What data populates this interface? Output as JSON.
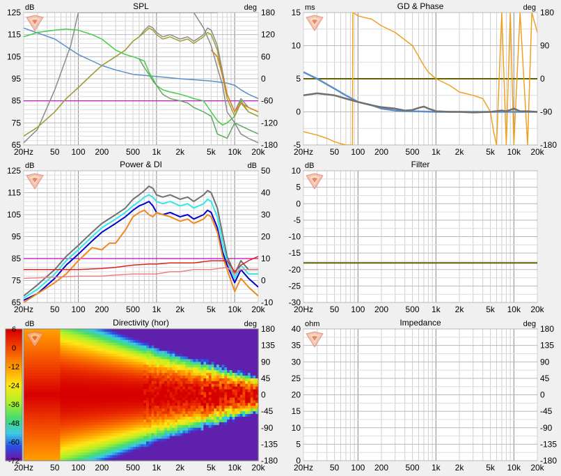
{
  "chart_data": [
    {
      "id": "spl",
      "type": "line",
      "title": "SPL",
      "left_unit": "dB",
      "right_unit": "deg",
      "x_ticks": [
        "20Hz",
        "50",
        "100",
        "200",
        "500",
        "1k",
        "2k",
        "5k",
        "10k",
        "20k"
      ],
      "left_ticks": [
        "125",
        "115",
        "105",
        "95",
        "85",
        "75",
        "65"
      ],
      "right_ticks": [
        "180",
        "120",
        "60",
        "0",
        "-60",
        "-120",
        "-180"
      ],
      "ylim": [
        65,
        125
      ],
      "xlim": [
        20,
        20000
      ],
      "x_scale": "log",
      "reference_line": {
        "y": 85,
        "color": "#c000c0"
      },
      "series": [
        {
          "color": "#8a8a8a",
          "x": [
            20,
            30,
            50,
            80,
            100,
            150,
            200,
            300,
            500,
            800,
            1000,
            1500,
            2000,
            3000,
            4000,
            5000,
            6000
          ],
          "y": [
            66,
            72,
            90,
            110,
            125,
            125,
            125,
            125,
            125,
            125,
            125,
            125,
            125,
            125,
            125,
            125,
            125
          ]
        },
        {
          "color": "#8a8a8a",
          "x": [
            2000,
            3000,
            4000,
            5000,
            6000,
            7000,
            8000,
            10000,
            12000,
            15000,
            20000
          ],
          "y": [
            128,
            125,
            118,
            110,
            100,
            92,
            80,
            75,
            70,
            68,
            66
          ]
        },
        {
          "color": "#5b8fc7",
          "x": [
            20,
            50,
            100,
            200,
            300,
            500,
            1000,
            2000,
            5000,
            8000,
            10000,
            12000,
            15000,
            20000
          ],
          "y": [
            118,
            113,
            106,
            101,
            99,
            97,
            96,
            95,
            94,
            93,
            92,
            90,
            88,
            86
          ]
        },
        {
          "color": "#44cc44",
          "x": [
            20,
            30,
            50,
            70,
            100,
            150,
            200,
            300,
            400,
            500,
            600,
            700,
            800,
            900,
            1000,
            1200,
            1500,
            2000,
            2500,
            3000,
            4000,
            5000,
            6000,
            7000,
            8000,
            10000,
            12000,
            15000,
            20000
          ],
          "y": [
            114,
            116,
            117,
            117.5,
            117,
            115,
            113,
            108,
            106,
            105,
            104,
            103,
            98,
            95,
            92,
            90,
            89,
            88,
            87,
            86,
            85,
            80,
            76,
            74,
            75,
            78,
            85,
            80,
            78
          ]
        },
        {
          "color": "#60a860",
          "x": [
            600,
            700,
            800,
            900,
            1000,
            1200,
            1500,
            2000,
            2500,
            3000,
            4000,
            5000,
            6000,
            8000,
            10000,
            15000,
            20000
          ],
          "y": [
            104,
            100,
            97,
            94,
            92,
            88,
            86,
            85,
            84,
            82,
            80,
            78,
            70,
            68,
            75,
            72,
            70
          ]
        },
        {
          "color": "#8a8a8a",
          "x": [
            20,
            30,
            50,
            70,
            100,
            150,
            200,
            300,
            400,
            500,
            600,
            700,
            800,
            900,
            1000,
            1200,
            1500,
            2000,
            2500,
            3000,
            4000,
            4500,
            5000,
            6000,
            7000,
            8000,
            10000,
            12000,
            15000,
            20000
          ],
          "y": [
            69,
            73,
            80,
            86,
            91,
            97,
            101,
            105,
            108,
            112,
            114,
            117,
            119,
            118,
            116,
            114,
            115,
            113,
            114,
            112,
            115,
            118,
            117,
            110,
            98,
            88,
            80,
            86,
            82,
            80
          ]
        },
        {
          "color": "#a0a030",
          "x": [
            20,
            30,
            50,
            70,
            100,
            150,
            200,
            300,
            400,
            500,
            600,
            700,
            800,
            900,
            1000,
            1200,
            1500,
            2000,
            2500,
            3000,
            4000,
            4500,
            5000,
            6000,
            7000,
            8000,
            10000,
            12000,
            15000,
            20000
          ],
          "y": [
            69,
            73,
            80,
            86,
            91,
            97,
            101,
            105,
            108,
            112,
            114,
            116,
            118,
            117,
            115,
            113,
            114,
            112,
            113,
            111,
            114,
            116,
            115,
            108,
            96,
            86,
            78,
            84,
            80,
            78
          ]
        },
        {
          "color": "#e08020",
          "x": [
            5000,
            6000,
            7000,
            8000,
            10000,
            12000,
            15000,
            20000
          ],
          "y": [
            108,
            105,
            96,
            88,
            80,
            84,
            82,
            80
          ]
        }
      ]
    },
    {
      "id": "gd",
      "type": "line",
      "title": "GD & Phase",
      "left_unit": "ms",
      "right_unit": "deg",
      "x_ticks": [
        "20Hz",
        "50",
        "100",
        "200",
        "500",
        "1k",
        "2k",
        "5k",
        "10k",
        "20k"
      ],
      "left_ticks": [
        "15",
        "10",
        "5",
        "0",
        "-5"
      ],
      "right_ticks": [
        "180",
        "90",
        "0",
        "-90",
        "-180"
      ],
      "ylim": [
        -5,
        15
      ],
      "xlim": [
        20,
        20000
      ],
      "x_scale": "log",
      "reference_line": {
        "y": 5,
        "color": "#606000"
      },
      "series": [
        {
          "color": "#f0a020",
          "x": [
            20,
            30,
            40,
            50,
            60,
            70,
            80,
            85,
            86,
            87,
            100,
            150,
            200,
            300,
            500,
            700,
            800,
            1000,
            1500,
            2000,
            3000,
            4000,
            5000,
            5500,
            6000,
            7000,
            8000,
            9000,
            10000,
            12000,
            15000,
            17000,
            20000
          ],
          "y": [
            -3,
            -3.5,
            -4,
            -4.5,
            -4.8,
            -5,
            -5,
            -5,
            15,
            15,
            14.5,
            14,
            13,
            12,
            10,
            7,
            6,
            5,
            4,
            3,
            2.5,
            2,
            0,
            -3,
            -5,
            15,
            -5,
            15,
            -5,
            15,
            -5,
            15,
            12
          ]
        },
        {
          "color": "#5b8fc7",
          "x": [
            20,
            30,
            50,
            70,
            100,
            150,
            200,
            300,
            500,
            1000,
            2000,
            5000,
            10000,
            20000
          ],
          "y": [
            6,
            5,
            3.5,
            2.5,
            1.5,
            1,
            0.5,
            0.2,
            0.1,
            0,
            0,
            0,
            0,
            0
          ]
        },
        {
          "color": "#707070",
          "x": [
            20,
            30,
            50,
            70,
            100,
            150,
            200,
            300,
            400,
            500,
            600,
            700,
            800,
            900,
            1000,
            1500,
            2000,
            3000,
            5000,
            7000,
            8000,
            9000,
            10000,
            12000,
            15000,
            20000
          ],
          "y": [
            2.5,
            2.8,
            2.5,
            2,
            1.5,
            1,
            0.7,
            0.5,
            0.2,
            0.3,
            0.6,
            0.8,
            0.5,
            0.3,
            0.1,
            0,
            0,
            -0.1,
            0,
            0.2,
            0.1,
            0.3,
            0.5,
            0.1,
            0.1,
            0
          ]
        }
      ]
    },
    {
      "id": "power",
      "type": "line",
      "title": "Power & DI",
      "left_unit": "dB",
      "right_unit": "dB",
      "x_ticks": [
        "20Hz",
        "50",
        "100",
        "200",
        "500",
        "1k",
        "2k",
        "5k",
        "10k",
        "20k"
      ],
      "left_ticks": [
        "125",
        "115",
        "105",
        "95",
        "85",
        "75",
        "65"
      ],
      "right_ticks": [
        "50",
        "40",
        "30",
        "20",
        "10",
        "0",
        "-10"
      ],
      "ylim": [
        65,
        125
      ],
      "xlim": [
        20,
        20000
      ],
      "x_scale": "log",
      "reference_line": {
        "y": 85,
        "color": "#c000c0"
      },
      "series": [
        {
          "color": "#707070",
          "x": [
            20,
            30,
            50,
            70,
            100,
            150,
            200,
            300,
            400,
            500,
            600,
            700,
            800,
            900,
            1000,
            1200,
            1500,
            2000,
            2500,
            3000,
            4000,
            4500,
            5000,
            6000,
            7000,
            8000,
            10000,
            12000,
            15000,
            20000
          ],
          "y": [
            68,
            73,
            80,
            86,
            91,
            97,
            101,
            105,
            108,
            112,
            114,
            116,
            118,
            117,
            114,
            113,
            114,
            112,
            113,
            111,
            114,
            116,
            115,
            108,
            96,
            86,
            78,
            84,
            80,
            80
          ]
        },
        {
          "color": "#30e8e8",
          "x": [
            20,
            30,
            50,
            70,
            100,
            150,
            200,
            300,
            400,
            500,
            600,
            700,
            800,
            900,
            1000,
            1200,
            1500,
            2000,
            2500,
            3000,
            4000,
            4500,
            5000,
            6000,
            7000,
            8000,
            10000,
            12000,
            15000,
            20000
          ],
          "y": [
            67,
            71,
            78,
            84,
            89,
            95,
            99,
            103,
            106,
            109,
            111,
            113,
            114,
            113,
            111,
            110,
            111,
            109,
            110,
            108,
            110,
            112,
            111,
            104,
            92,
            84,
            76,
            82,
            78,
            78
          ]
        },
        {
          "color": "#0000d0",
          "x": [
            20,
            30,
            50,
            70,
            100,
            150,
            200,
            300,
            400,
            500,
            600,
            700,
            800,
            900,
            1000,
            1200,
            1500,
            2000,
            2500,
            3000,
            4000,
            4500,
            5000,
            6000,
            7000,
            8000,
            10000,
            12000,
            15000,
            20000
          ],
          "y": [
            66,
            69,
            76,
            82,
            87,
            93,
            97,
            101,
            104,
            107,
            109,
            110,
            111,
            109,
            106,
            105,
            106,
            104,
            105,
            103,
            105,
            107,
            106,
            99,
            88,
            82,
            74,
            80,
            76,
            72
          ]
        },
        {
          "color": "#f08820",
          "x": [
            20,
            30,
            50,
            70,
            100,
            150,
            200,
            250,
            300,
            400,
            500,
            600,
            700,
            800,
            900,
            1000,
            1200,
            1500,
            2000,
            2500,
            3000,
            4000,
            4500,
            5000,
            6000,
            7000,
            8000,
            10000,
            12000,
            15000,
            20000
          ],
          "y": [
            65,
            69,
            74,
            78,
            84,
            90,
            89,
            92,
            92,
            98,
            104,
            106,
            107,
            105,
            104,
            106,
            105,
            104,
            102,
            103,
            101,
            103,
            105,
            104,
            97,
            86,
            80,
            70,
            76,
            72,
            68
          ]
        },
        {
          "color": "#e02020",
          "x": [
            20,
            50,
            100,
            200,
            300,
            500,
            800,
            1000,
            1500,
            2000,
            3000,
            5000,
            8000,
            10000,
            12000,
            15000,
            20000
          ],
          "y": [
            80,
            80,
            80,
            80.5,
            81,
            82,
            82.5,
            82.5,
            83,
            83,
            83,
            84,
            84,
            79,
            82,
            84,
            86
          ]
        },
        {
          "color": "#f08080",
          "x": [
            20,
            50,
            100,
            200,
            300,
            500,
            800,
            1000,
            1500,
            2000,
            3000,
            5000,
            8000,
            10000,
            12000,
            15000,
            20000
          ],
          "y": [
            76,
            76.5,
            77,
            77,
            77.5,
            78,
            78,
            78,
            79,
            79,
            80,
            80,
            81,
            78,
            80,
            80,
            80
          ]
        }
      ]
    },
    {
      "id": "filter",
      "type": "line",
      "title": "Filter",
      "left_unit": "dB",
      "right_unit": "",
      "x_ticks": [
        "20Hz",
        "50",
        "100",
        "200",
        "500",
        "1k",
        "2k",
        "5k",
        "10k",
        "20k"
      ],
      "left_ticks": [
        "10",
        "5",
        "0",
        "-5",
        "-10",
        "-15",
        "-20",
        "-25",
        "-30"
      ],
      "right_ticks": [],
      "ylim": [
        -30,
        10
      ],
      "xlim": [
        20,
        20000
      ],
      "x_scale": "log",
      "reference_line": {
        "y": -18,
        "color": "#606000"
      },
      "series": []
    },
    {
      "id": "directivity",
      "type": "heatmap",
      "title": "Directivity (hor)",
      "left_unit": "dB",
      "right_unit": "deg",
      "x_ticks": [
        "20Hz",
        "50",
        "100",
        "200",
        "500",
        "1k",
        "2k",
        "5k",
        "10k",
        "20k"
      ],
      "left_ticks": [
        "6",
        "0",
        "-12",
        "-24",
        "-36",
        "-48",
        "-60",
        "-72"
      ],
      "right_ticks": [
        "180",
        "135",
        "90",
        "45",
        "0",
        "-45",
        "-90",
        "-135",
        "-180"
      ],
      "xlim": [
        20,
        20000
      ],
      "ylim": [
        -180,
        180
      ],
      "x_scale": "log"
    },
    {
      "id": "impedance",
      "type": "line",
      "title": "Impedance",
      "left_unit": "ohm",
      "right_unit": "deg",
      "x_ticks": [
        "20Hz",
        "50",
        "100",
        "200",
        "500",
        "1k",
        "2k",
        "5k",
        "10k",
        "20k"
      ],
      "left_ticks": [
        "40",
        "35",
        "30",
        "25",
        "20",
        "15",
        "10",
        "5",
        "0"
      ],
      "right_ticks": [
        "180",
        "135",
        "90",
        "45",
        "0",
        "-45",
        "-90",
        "-135",
        "-180"
      ],
      "ylim": [
        0,
        40
      ],
      "xlim": [
        20,
        20000
      ],
      "x_scale": "log",
      "reference_line": null,
      "series": []
    }
  ]
}
